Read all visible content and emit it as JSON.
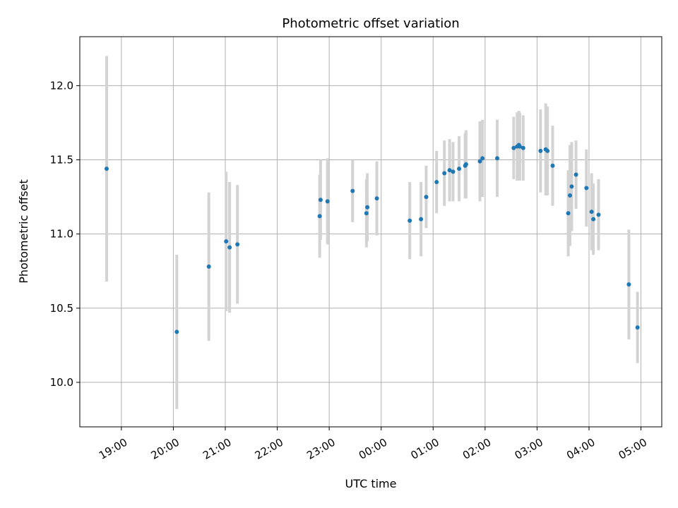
{
  "chart_data": {
    "type": "scatter",
    "title": "Photometric offset variation",
    "xlabel": "UTC time",
    "ylabel": "Photometric offset",
    "x_tick_labels": [
      "19:00",
      "20:00",
      "21:00",
      "22:00",
      "23:00",
      "00:00",
      "01:00",
      "02:00",
      "03:00",
      "04:00",
      "05:00"
    ],
    "y_tick_labels": [
      "10.0",
      "10.5",
      "11.0",
      "11.5",
      "12.0"
    ],
    "y_ticks": [
      10.0,
      10.5,
      11.0,
      11.5,
      12.0
    ],
    "xlim_hours": [
      18.2,
      29.4
    ],
    "ylim": [
      9.7,
      12.33
    ],
    "grid": true,
    "point_color": "#1f77b4",
    "errorbar_color": "#d3d3d3",
    "series": [
      {
        "x": [
          "18:43",
          "20:04",
          "20:41",
          "21:01",
          "21:05",
          "21:14",
          "22:49",
          "22:50",
          "22:58",
          "23:27",
          "23:43",
          "23:44",
          "23:55",
          "00:33",
          "00:46",
          "00:52",
          "01:04",
          "01:13",
          "01:19",
          "01:23",
          "01:30",
          "01:37",
          "01:38",
          "01:54",
          "01:57",
          "02:14",
          "02:33",
          "02:37",
          "02:39",
          "02:40",
          "02:44",
          "03:04",
          "03:10",
          "03:12",
          "03:18",
          "03:36",
          "03:38",
          "03:40",
          "03:45",
          "03:57",
          "04:03",
          "04:05",
          "04:11",
          "04:46",
          "04:56"
        ],
        "y": [
          11.44,
          10.34,
          10.78,
          10.95,
          10.91,
          10.93,
          11.12,
          11.23,
          11.22,
          11.29,
          11.14,
          11.18,
          11.24,
          11.09,
          11.1,
          11.25,
          11.35,
          11.41,
          11.43,
          11.42,
          11.44,
          11.46,
          11.47,
          11.49,
          11.51,
          11.51,
          11.58,
          11.59,
          11.6,
          11.59,
          11.58,
          11.56,
          11.57,
          11.56,
          11.46,
          11.14,
          11.26,
          11.32,
          11.4,
          11.31,
          11.15,
          11.1,
          11.13,
          10.66,
          10.37
        ],
        "yerr": [
          0.76,
          0.52,
          0.5,
          0.47,
          0.44,
          0.4,
          0.28,
          0.27,
          0.29,
          0.21,
          0.23,
          0.23,
          0.25,
          0.26,
          0.25,
          0.21,
          0.21,
          0.22,
          0.21,
          0.2,
          0.22,
          0.22,
          0.23,
          0.27,
          0.26,
          0.26,
          0.21,
          0.23,
          0.23,
          0.23,
          0.22,
          0.28,
          0.31,
          0.3,
          0.27,
          0.29,
          0.34,
          0.3,
          0.23,
          0.26,
          0.26,
          0.24,
          0.24,
          0.37,
          0.24
        ]
      }
    ]
  }
}
